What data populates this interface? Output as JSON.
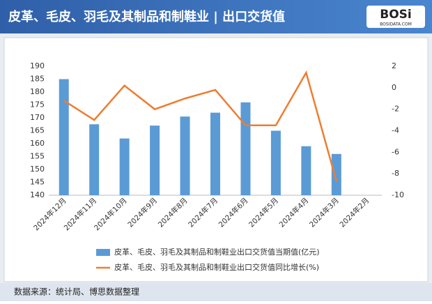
{
  "header": {
    "title": "皮革、毛皮、羽毛及其制品和制鞋业 | 出口交货值",
    "logo": "BOSi",
    "logo_site": "BOSIDATA.COM"
  },
  "chart_data": {
    "type": "bar-line",
    "categories": [
      "2024年12月",
      "2024年11月",
      "2024年10月",
      "2024年9月",
      "2024年8月",
      "2024年7月",
      "2024年6月",
      "2024年5月",
      "2024年4月",
      "2024年3月",
      "2024年2月"
    ],
    "series": [
      {
        "name": "皮革、毛皮、羽毛及其制品和制鞋业出口交货值当期值(亿元)",
        "type": "bar",
        "color": "#5b9bd5",
        "values": [
          185,
          167.5,
          162,
          167,
          170.5,
          172,
          176,
          165,
          159,
          156,
          null
        ]
      },
      {
        "name": "皮革、毛皮、羽毛及其制品和制鞋业出口交货值同比增长(%)",
        "type": "line",
        "axis": "y2",
        "color": "#ed7d31",
        "values": [
          -1.2,
          -3.0,
          0.2,
          -2.0,
          -1.0,
          -0.2,
          -3.5,
          -3.5,
          1.4,
          -8.7,
          null
        ]
      }
    ],
    "ylim": [
      140,
      190
    ],
    "yticks": [
      140,
      145,
      150,
      155,
      160,
      165,
      170,
      175,
      180,
      185,
      190
    ],
    "y2lim": [
      -10,
      2
    ],
    "y2ticks": [
      -10,
      -8,
      -6,
      -4,
      -2,
      0,
      2
    ],
    "legend": "bottom"
  },
  "footer": {
    "source": "数据来源：统计局、博思数据整理"
  }
}
